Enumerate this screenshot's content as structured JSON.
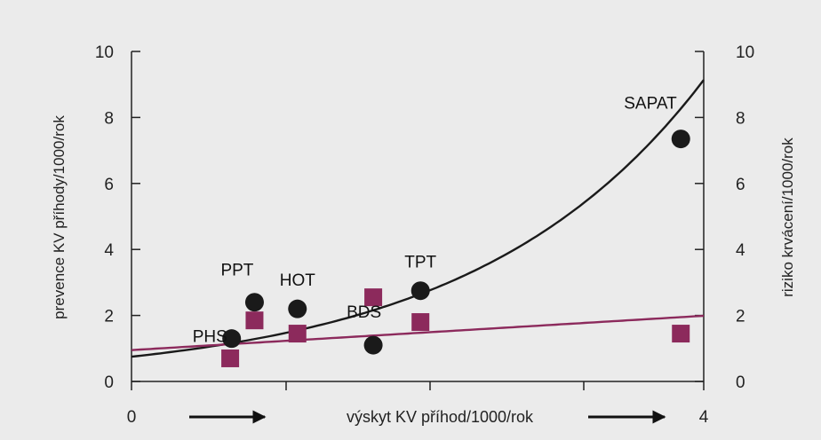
{
  "chart_data": {
    "type": "scatter",
    "x_range": [
      0,
      4
    ],
    "y_left_range": [
      0,
      10
    ],
    "y_right_range": [
      0,
      10
    ],
    "y_ticks": [
      0,
      2,
      4,
      6,
      8,
      10
    ],
    "y_left_tick_labels": [
      "0",
      "2",
      "4",
      "6",
      "8",
      "10"
    ],
    "y_right_tick_labels": [
      "0",
      "2",
      "4",
      "6",
      "8",
      "10"
    ],
    "x_tick_labels": [
      {
        "x": 0,
        "label": "0"
      },
      {
        "x": 4,
        "label": "4"
      }
    ],
    "xlabel": "výskyt KV příhod/1000/rok",
    "ylabel_left": "prevence KV příhody/1000/rok",
    "ylabel_right": "riziko krvácení/1000/rok",
    "colors": {
      "prevention": "#1a1a1a",
      "bleeding": "#8c2a5c",
      "axis": "#222222",
      "background": "#ebebeb"
    },
    "series": [
      {
        "marker": "circle",
        "color": "#1a1a1a",
        "axis": "left",
        "points": [
          {
            "x": 0.7,
            "y": 1.3,
            "label": "PHS"
          },
          {
            "x": 0.86,
            "y": 2.4,
            "label": "PPT"
          },
          {
            "x": 1.16,
            "y": 2.2,
            "label": "HOT"
          },
          {
            "x": 1.69,
            "y": 1.1,
            "label": "BDS"
          },
          {
            "x": 2.02,
            "y": 2.75,
            "label": "TPT"
          },
          {
            "x": 3.84,
            "y": 7.35,
            "label": "SAPAT"
          }
        ]
      },
      {
        "marker": "square",
        "color": "#8c2a5c",
        "axis": "right",
        "points": [
          {
            "x": 0.69,
            "y": 0.7
          },
          {
            "x": 0.86,
            "y": 1.85
          },
          {
            "x": 1.16,
            "y": 1.45
          },
          {
            "x": 1.69,
            "y": 2.55
          },
          {
            "x": 2.02,
            "y": 1.8
          },
          {
            "x": 3.84,
            "y": 1.45
          }
        ]
      }
    ],
    "trend_lines": [
      {
        "kind": "exponential",
        "color": "#1a1a1a",
        "a": 0.75,
        "b": 0.625
      },
      {
        "kind": "linear",
        "color": "#8c2a5c",
        "intercept": 0.95,
        "slope": 0.26
      }
    ]
  }
}
